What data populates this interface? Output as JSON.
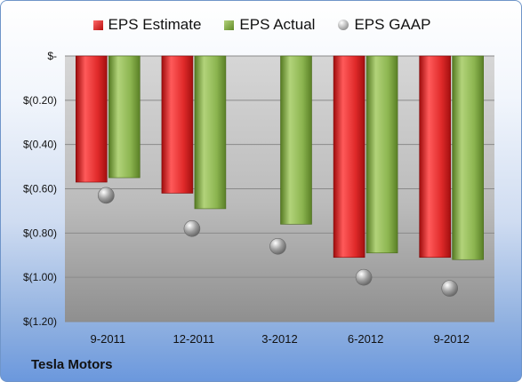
{
  "legend": {
    "estimate": "EPS Estimate",
    "actual": "EPS Actual",
    "gaap": "EPS GAAP"
  },
  "footer": {
    "company": "Tesla Motors"
  },
  "colors": {
    "estimate": "#d42020",
    "actual": "#7ea83c",
    "gaap": "#9a9a9a"
  },
  "chart_data": {
    "type": "bar",
    "categories": [
      "9-2011",
      "12-2011",
      "3-2012",
      "6-2012",
      "9-2012"
    ],
    "series": [
      {
        "name": "EPS Estimate",
        "values": [
          -0.57,
          -0.62,
          null,
          -0.91,
          -0.91
        ]
      },
      {
        "name": "EPS Actual",
        "values": [
          -0.55,
          -0.69,
          -0.76,
          -0.89,
          -0.92
        ]
      },
      {
        "name": "EPS GAAP",
        "values": [
          -0.63,
          -0.78,
          -0.86,
          -1.0,
          -1.05
        ],
        "marker": "circle"
      }
    ],
    "ylim": [
      -1.2,
      0
    ],
    "yticks": [
      0,
      -0.2,
      -0.4,
      -0.6,
      -0.8,
      -1.0,
      -1.2
    ],
    "ytick_labels": [
      "$-",
      "$(0.20)",
      "$(0.40)",
      "$(0.60)",
      "$(0.80)",
      "$(1.00)",
      "$(1.20)"
    ],
    "grid": true,
    "legend_position": "top"
  }
}
